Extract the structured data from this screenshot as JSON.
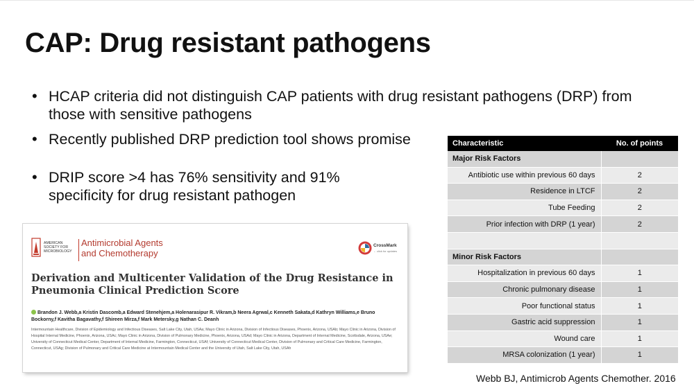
{
  "slide": {
    "title": "CAP: Drug resistant pathogens",
    "bullets": [
      "HCAP criteria did not distinguish CAP patients with drug resistant pathogens (DRP) from those with sensitive pathogens",
      "Recently published DRP prediction tool shows promise",
      "DRIP score >4 has 76% sensitivity and 91% specificity for drug resistant pathogen"
    ],
    "citation": "Webb BJ, Antimicrob Agents Chemother. 2016"
  },
  "paper": {
    "publisher": "American\nSociety for\nMicrobiology",
    "journal": "Antimicrobial Agents\nand Chemotherapy",
    "crossmark": "CrossMark",
    "crossmark_sub": "← click for updates",
    "title": "Derivation and Multicenter Validation of the Drug Resistance in\nPneumonia Clinical Prediction Score",
    "authors": "Brandon J. Webb,a Kristin Dascomb,a Edward Stenehjem,a Holenarasipur R. Vikram,b Neera Agrwal,c Kenneth Sakata,d Kathryn Williams,e Bruno Bockorny,f Kavitha Bagavathy,f Shireen Mirza,f Mark Metersky,g Nathan C. Deanh",
    "affiliations": "Intermountain Healthcare, Division of Epidemiology and Infectious Diseases, Salt Lake City, Utah, USAa; Mayo Clinic in Arizona, Division of Infectious Diseases, Phoenix, Arizona, USAb; Mayo Clinic in Arizona, Division of Hospital Internal Medicine, Phoenix, Arizona, USAc; Mayo Clinic in Arizona, Division of Pulmonary Medicine, Phoenix, Arizona, USAd; Mayo Clinic in Arizona, Department of Internal Medicine, Scottsdale, Arizona, USAe; University of Connecticut Medical Center, Department of Internal Medicine, Farmington, Connecticut, USAf; University of Connecticut Medical Center, Division of Pulmonary and Critical Care Medicine, Farmington, Connecticut, USAg; Division of Pulmonary and Critical Care Medicine at Intermountain Medical Center and the University of Utah, Salt Lake City, Utah, USAh",
    "colors": {
      "journal": "#b33a2e",
      "orcid": "#8cc34a"
    }
  },
  "table": {
    "headers": [
      "Characteristic",
      "No. of points"
    ],
    "rows": [
      {
        "label": "Major Risk Factors",
        "points": "",
        "section": true
      },
      {
        "label": "Antibiotic use within previous 60 days",
        "points": "2"
      },
      {
        "label": "Residence in LTCF",
        "points": "2"
      },
      {
        "label": "Tube Feeding",
        "points": "2"
      },
      {
        "label": "Prior infection with DRP (1 year)",
        "points": "2"
      },
      {
        "label": "",
        "points": ""
      },
      {
        "label": "Minor Risk Factors",
        "points": "",
        "section": true
      },
      {
        "label": "Hospitalization in previous 60 days",
        "points": "1"
      },
      {
        "label": "Chronic pulmonary disease",
        "points": "1"
      },
      {
        "label": "Poor functional status",
        "points": "1"
      },
      {
        "label": "Gastric acid suppression",
        "points": "1"
      },
      {
        "label": "Wound care",
        "points": "1"
      },
      {
        "label": "MRSA colonization (1 year)",
        "points": "1"
      }
    ]
  }
}
